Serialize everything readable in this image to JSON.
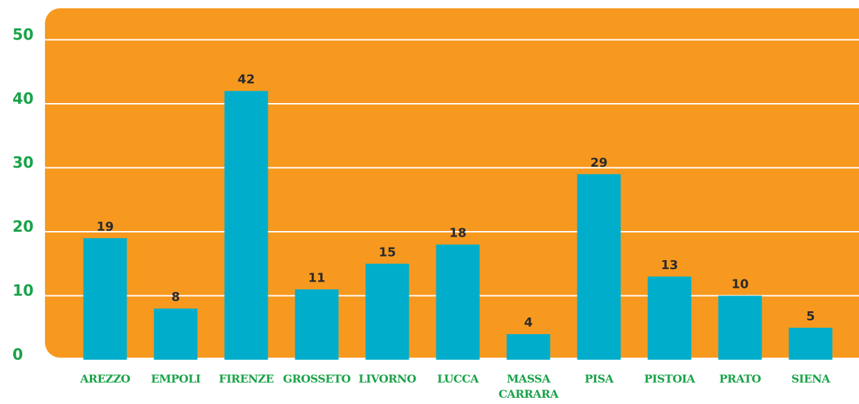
{
  "chart_data": {
    "type": "bar",
    "categories": [
      "AREZZO",
      "EMPOLI",
      "FIRENZE",
      "GROSSETO",
      "LIVORNO",
      "LUCCA",
      "MASSA CARRARA",
      "PISA",
      "PISTOIA",
      "PRATO",
      "SIENA"
    ],
    "values": [
      19,
      8,
      42,
      11,
      15,
      18,
      4,
      29,
      13,
      10,
      5
    ],
    "color": "#00aecb",
    "background": "#f7991f",
    "ylim": [
      0,
      50
    ],
    "yticks": [
      0,
      10,
      20,
      30,
      40,
      50
    ],
    "grid": true
  }
}
